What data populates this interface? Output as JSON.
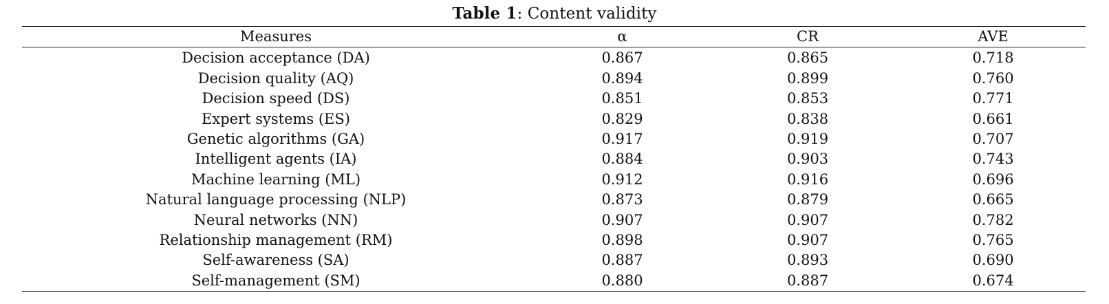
{
  "caption": {
    "label": "Table 1",
    "separator": ": ",
    "title": "Content validity"
  },
  "table": {
    "headers": [
      "Measures",
      "α",
      "CR",
      "AVE"
    ],
    "rows": [
      [
        "Decision acceptance (DA)",
        "0.867",
        "0.865",
        "0.718"
      ],
      [
        "Decision quality (AQ)",
        "0.894",
        "0.899",
        "0.760"
      ],
      [
        "Decision speed (DS)",
        "0.851",
        "0.853",
        "0.771"
      ],
      [
        "Expert systems (ES)",
        "0.829",
        "0.838",
        "0.661"
      ],
      [
        "Genetic algorithms (GA)",
        "0.917",
        "0.919",
        "0.707"
      ],
      [
        "Intelligent agents (IA)",
        "0.884",
        "0.903",
        "0.743"
      ],
      [
        "Machine learning (ML)",
        "0.912",
        "0.916",
        "0.696"
      ],
      [
        "Natural language processing (NLP)",
        "0.873",
        "0.879",
        "0.665"
      ],
      [
        "Neural networks (NN)",
        "0.907",
        "0.907",
        "0.782"
      ],
      [
        "Relationship management (RM)",
        "0.898",
        "0.907",
        "0.765"
      ],
      [
        "Self-awareness (SA)",
        "0.887",
        "0.893",
        "0.690"
      ],
      [
        "Self-management (SM)",
        "0.880",
        "0.887",
        "0.674"
      ]
    ]
  }
}
